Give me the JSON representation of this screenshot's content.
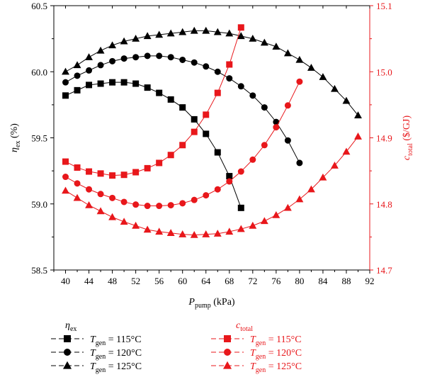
{
  "chart_data": {
    "type": "line",
    "title": "",
    "xlabel": {
      "main": "P",
      "sub": "pump",
      "unit": " (kPa)"
    },
    "ylabel_left": {
      "main": "η",
      "sub": "ex",
      "unit": " (%)"
    },
    "ylabel_right": {
      "main": "c",
      "sub": "total",
      "unit": " ($/GJ)"
    },
    "xlim": [
      38,
      92
    ],
    "ylim_left": [
      58.5,
      60.5
    ],
    "ylim_right": [
      14.7,
      15.1
    ],
    "x_ticks": [
      40,
      44,
      48,
      52,
      56,
      60,
      64,
      68,
      72,
      76,
      80,
      84,
      88,
      92
    ],
    "y_ticks_left": [
      58.5,
      59.0,
      59.5,
      60.0,
      60.5
    ],
    "y_ticks_right": [
      14.7,
      14.8,
      14.9,
      15.0,
      15.1
    ],
    "colors": {
      "left": "#000000",
      "right": "#e8171b"
    },
    "legend_left_header": {
      "main": "η",
      "sub": "ex"
    },
    "legend_right_header": {
      "main": "c",
      "sub": "total"
    },
    "series": [
      {
        "name": "T_gen = 115°C",
        "axis": "left",
        "marker": "square",
        "color": "#000000",
        "x": [
          40,
          42,
          44,
          46,
          48,
          50,
          52,
          54,
          56,
          58,
          60,
          62,
          64,
          66,
          68,
          70
        ],
        "y": [
          59.82,
          59.86,
          59.9,
          59.91,
          59.92,
          59.92,
          59.91,
          59.88,
          59.84,
          59.79,
          59.73,
          59.64,
          59.53,
          59.39,
          59.21,
          58.97
        ]
      },
      {
        "name": "T_gen = 120°C",
        "axis": "left",
        "marker": "circle",
        "color": "#000000",
        "x": [
          40,
          42,
          44,
          46,
          48,
          50,
          52,
          54,
          56,
          58,
          60,
          62,
          64,
          66,
          68,
          70,
          72,
          74,
          76,
          78,
          80
        ],
        "y": [
          59.92,
          59.97,
          60.01,
          60.05,
          60.08,
          60.1,
          60.11,
          60.12,
          60.12,
          60.11,
          60.09,
          60.07,
          60.04,
          60.0,
          59.95,
          59.89,
          59.82,
          59.73,
          59.62,
          59.48,
          59.31
        ]
      },
      {
        "name": "T_gen = 125°C",
        "axis": "left",
        "marker": "triangle",
        "color": "#000000",
        "x": [
          40,
          42,
          44,
          46,
          48,
          50,
          52,
          54,
          56,
          58,
          60,
          62,
          64,
          66,
          68,
          70,
          72,
          74,
          76,
          78,
          80,
          82,
          84,
          86,
          88,
          90
        ],
        "y": [
          60.0,
          60.05,
          60.11,
          60.16,
          60.2,
          60.23,
          60.25,
          60.27,
          60.28,
          60.29,
          60.3,
          60.31,
          60.31,
          60.3,
          60.29,
          60.27,
          60.25,
          60.22,
          60.19,
          60.14,
          60.09,
          60.03,
          59.96,
          59.87,
          59.78,
          59.67
        ]
      },
      {
        "name": "T_gen = 115°C",
        "axis": "right",
        "marker": "square",
        "color": "#e8171b",
        "x": [
          40,
          42,
          44,
          46,
          48,
          50,
          52,
          54,
          56,
          58,
          60,
          62,
          64,
          66,
          68,
          70
        ],
        "y": [
          14.864,
          14.855,
          14.849,
          14.846,
          14.843,
          14.844,
          14.848,
          14.854,
          14.862,
          14.874,
          14.889,
          14.909,
          14.935,
          14.968,
          15.011,
          15.067
        ]
      },
      {
        "name": "T_gen = 120°C",
        "axis": "right",
        "marker": "circle",
        "color": "#e8171b",
        "x": [
          40,
          42,
          44,
          46,
          48,
          50,
          52,
          54,
          56,
          58,
          60,
          62,
          64,
          66,
          68,
          70,
          72,
          74,
          76,
          78,
          80
        ],
        "y": [
          14.841,
          14.831,
          14.822,
          14.815,
          14.809,
          14.803,
          14.799,
          14.797,
          14.797,
          14.798,
          14.801,
          14.806,
          14.813,
          14.822,
          14.834,
          14.849,
          14.867,
          14.889,
          14.916,
          14.949,
          14.985
        ]
      },
      {
        "name": "T_gen = 125°C",
        "axis": "right",
        "marker": "triangle",
        "color": "#e8171b",
        "x": [
          40,
          42,
          44,
          46,
          48,
          50,
          52,
          54,
          56,
          58,
          60,
          62,
          64,
          66,
          68,
          70,
          72,
          74,
          76,
          78,
          80,
          82,
          84,
          86,
          88,
          90
        ],
        "y": [
          14.82,
          14.809,
          14.798,
          14.789,
          14.78,
          14.773,
          14.767,
          14.761,
          14.758,
          14.756,
          14.754,
          14.753,
          14.754,
          14.755,
          14.758,
          14.762,
          14.767,
          14.774,
          14.783,
          14.794,
          14.807,
          14.822,
          14.84,
          14.858,
          14.879,
          14.902
        ]
      }
    ],
    "legend_labels": {
      "main": "T",
      "sub": "gen",
      "values": [
        "115°C",
        "120°C",
        "125°C"
      ]
    }
  }
}
